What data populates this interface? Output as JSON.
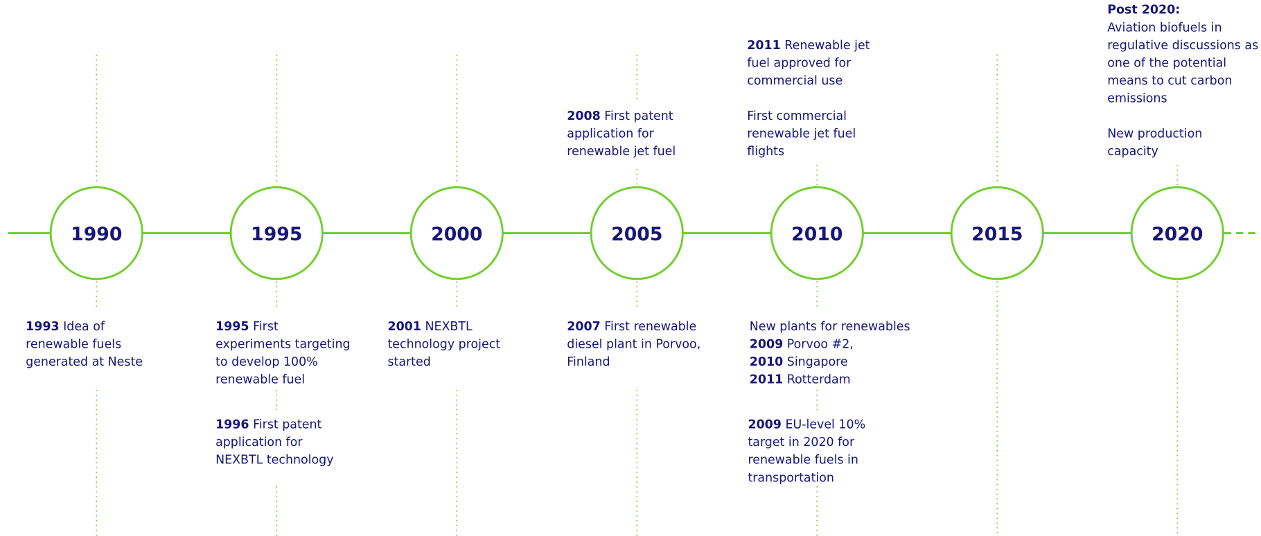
{
  "timeline": {
    "years": [
      "1990",
      "1995",
      "2000",
      "2005",
      "2010",
      "2015",
      "2020"
    ],
    "below": [
      {
        "year": "1993",
        "text": "Idea of renewable fuels generated at Neste"
      },
      {
        "year": "1995",
        "text": "First experiments targeting to develop 100% renewable fuel"
      },
      {
        "year": "1996",
        "text": "First patent application for NEXBTL technology"
      },
      {
        "year": "2001",
        "text": "NEXBTL technology project started"
      },
      {
        "year": "2007",
        "text": "First renewable diesel plant in Porvoo, Finland"
      },
      {
        "year": "2009",
        "text": "EU-level 10% target in 2020 for renewable fuels in transportation"
      }
    ],
    "new_plants": {
      "heading": "New plants for renewables",
      "items": [
        {
          "year": "2009",
          "text": "Porvoo #2,"
        },
        {
          "year": "2010",
          "text": "Singapore"
        },
        {
          "year": "2011",
          "text": "Rotterdam"
        }
      ]
    },
    "above": [
      {
        "year": "2008",
        "text": "First patent application for renewable jet fuel"
      },
      {
        "year": "2011",
        "text": "Renewable jet fuel approved for commercial use"
      },
      {
        "text": "First commercial renewable jet fuel flights"
      },
      {
        "year": "Post 2020:",
        "text": "Aviation biofuels in regulative discussions as one of the potential means to cut carbon emissions"
      },
      {
        "text": "New production capacity"
      }
    ]
  }
}
